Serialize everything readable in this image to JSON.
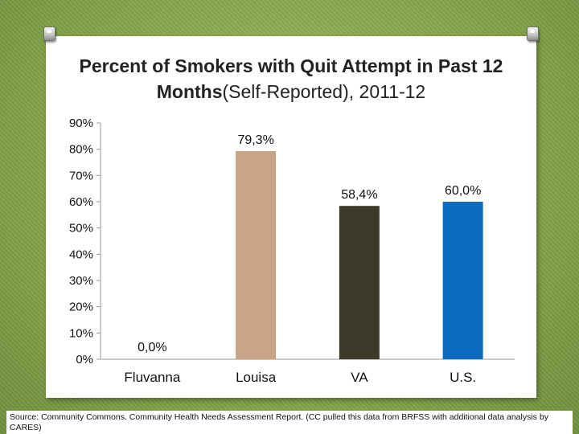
{
  "chart_data": {
    "type": "bar",
    "title_bold": "Percent of Smokers with Quit Attempt in Past 12 Months",
    "title_rest": "(Self-Reported), 2011-12",
    "categories": [
      "Fluvanna",
      "Louisa",
      "VA",
      "U.S."
    ],
    "values": [
      0.0,
      79.3,
      58.4,
      60.0
    ],
    "data_labels": [
      "0,0%",
      "79,3%",
      "58,4%",
      "60,0%"
    ],
    "colors": [
      "#c8a585",
      "#c8a585",
      "#3d3a2c",
      "#0b6bbd"
    ],
    "ylim": [
      0,
      90
    ],
    "yticks": [
      "0%",
      "10%",
      "20%",
      "30%",
      "40%",
      "50%",
      "60%",
      "70%",
      "80%",
      "90%"
    ],
    "xlabel": "",
    "ylabel": ""
  },
  "source_note": "Source: Community Commons. Community Health Needs Assessment Report. (CC pulled this data from BRFSS with additional data analysis by CARES)"
}
